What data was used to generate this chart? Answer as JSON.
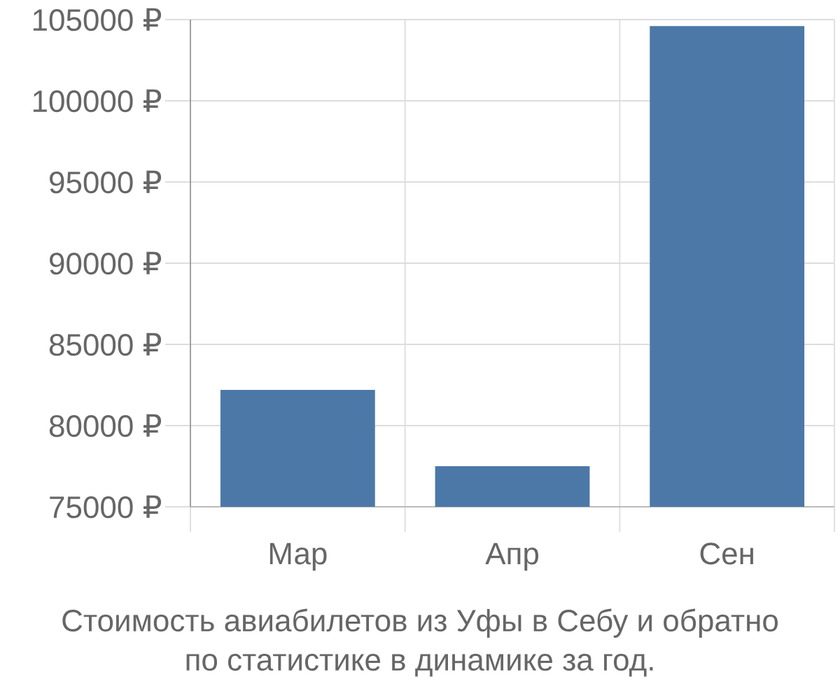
{
  "chart_data": {
    "type": "bar",
    "categories": [
      "Мар",
      "Апр",
      "Сен"
    ],
    "values": [
      82200,
      77500,
      104600
    ],
    "color": "#4c78a8",
    "ylim": [
      75000,
      105000
    ],
    "yticks": [
      {
        "value": 75000,
        "label": "75000 ₽"
      },
      {
        "value": 80000,
        "label": "80000 ₽"
      },
      {
        "value": 85000,
        "label": "85000 ₽"
      },
      {
        "value": 90000,
        "label": "90000 ₽"
      },
      {
        "value": 95000,
        "label": "95000 ₽"
      },
      {
        "value": 100000,
        "label": "100000 ₽"
      },
      {
        "value": 105000,
        "label": "105000 ₽"
      }
    ],
    "grid": true,
    "annotations": [
      "Стоимость авиабилетов из Уфы в Себу и обратно по статистике в динамике за год."
    ]
  }
}
